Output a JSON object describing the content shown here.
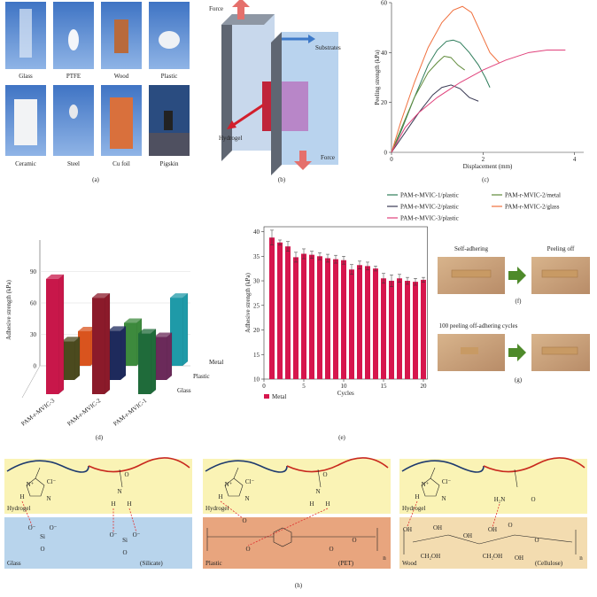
{
  "panel_labels": [
    "(a)",
    "(b)",
    "(c)",
    "(d)",
    "(e)",
    "(f)",
    "(g)",
    "(h)"
  ],
  "photos_a": [
    "Glass",
    "PTFE",
    "Wood",
    "Plastic",
    "Ceramic",
    "Steel",
    "Cu foil",
    "Pigskin"
  ],
  "diagram_b": [
    "Force",
    "Substrates",
    "Hydrogel",
    "Force"
  ],
  "chart_data": [
    {
      "type": "line",
      "xlabel": "Displacement (mm)",
      "ylabel": "Peeling strength (kPa)",
      "xlim": [
        0,
        4.2
      ],
      "xticks": [
        0,
        2,
        4
      ],
      "ylim": [
        0,
        60
      ],
      "yticks": [
        0,
        20,
        40,
        60
      ],
      "series": [
        {
          "name": "PAM-r-MVIC-1/plastic",
          "color": "#2f7d5b",
          "x": [
            0,
            0.2,
            0.5,
            0.8,
            1.0,
            1.2,
            1.35,
            1.5,
            1.7,
            1.9,
            2.05,
            2.15
          ],
          "values": [
            0,
            8,
            22,
            35,
            41,
            44.5,
            45,
            44,
            40,
            35,
            30,
            26
          ]
        },
        {
          "name": "PAM-r-MVIC-2/metal",
          "color": "#5f8a3a",
          "x": [
            0,
            0.2,
            0.5,
            0.8,
            1.0,
            1.15,
            1.3,
            1.45,
            1.6
          ],
          "values": [
            0,
            9,
            22,
            32,
            36,
            38.5,
            38,
            35,
            33
          ]
        },
        {
          "name": "PAM-r-MVIC-2/plastic",
          "color": "#3b3b55",
          "x": [
            0,
            0.3,
            0.6,
            0.9,
            1.1,
            1.3,
            1.5,
            1.7,
            1.9
          ],
          "values": [
            0,
            8,
            16,
            23,
            26,
            27,
            25.5,
            22,
            20.5
          ]
        },
        {
          "name": "PAM-r-MVIC-2/glass",
          "color": "#f0703e",
          "x": [
            0,
            0.2,
            0.5,
            0.8,
            1.1,
            1.35,
            1.55,
            1.75,
            1.95,
            2.15,
            2.35
          ],
          "values": [
            0,
            12,
            28,
            42,
            52,
            57,
            58.5,
            56,
            48,
            40,
            36
          ]
        },
        {
          "name": "PAM-r-MVIC-3/plastic",
          "color": "#e0417b",
          "x": [
            0,
            0.3,
            0.6,
            1.0,
            1.5,
            2.0,
            2.5,
            3.0,
            3.4,
            3.8
          ],
          "values": [
            0,
            10,
            16,
            22,
            28,
            33,
            37,
            40,
            41,
            41
          ]
        }
      ]
    },
    {
      "type": "bar3d",
      "ylabel": "Adhesive strength (kPa)",
      "categories": [
        "PAM-r-MVIC-3",
        "PAM-r-MVIC-2",
        "PAM-r-MVIC-1"
      ],
      "ylim": [
        0,
        120
      ],
      "yticks": [
        0,
        30,
        60,
        90
      ],
      "series": [
        {
          "name": "Glass",
          "colors": [
            "#c8174a",
            "#8b1a2a",
            "#1f6b3a"
          ],
          "values": [
            110,
            92,
            58
          ]
        },
        {
          "name": "Plastic",
          "colors": [
            "#4b4a1e",
            "#1e2a5c",
            "#6b2a5a"
          ],
          "values": [
            37,
            47,
            41
          ]
        },
        {
          "name": "Metal",
          "colors": [
            "#d9541e",
            "#3d8a3d",
            "#1f9aa8"
          ],
          "values": [
            33,
            41,
            65
          ]
        }
      ]
    },
    {
      "type": "bar",
      "xlabel": "Cycles",
      "ylabel": "Adhesive strength (kPa)",
      "xlim": [
        0,
        20.5
      ],
      "xticks": [
        0,
        5,
        10,
        15,
        20
      ],
      "ylim": [
        10,
        41
      ],
      "yticks": [
        10,
        15,
        20,
        25,
        30,
        35,
        40
      ],
      "x": [
        1,
        2,
        3,
        4,
        5,
        6,
        7,
        8,
        9,
        10,
        11,
        12,
        13,
        14,
        15,
        16,
        17,
        18,
        19,
        20
      ],
      "series": [
        {
          "name": "Metal",
          "color": "#d6164d",
          "values": [
            38.8,
            37.8,
            37,
            34.8,
            35.5,
            35.3,
            35,
            34.6,
            34.4,
            34.2,
            32.3,
            33.2,
            33,
            32.5,
            30.5,
            30,
            30.5,
            30,
            29.8,
            30.2
          ],
          "errors": [
            1.5,
            0.5,
            1,
            1,
            1,
            0.7,
            0.7,
            0.8,
            0.8,
            0.8,
            1,
            0.8,
            0.8,
            0.5,
            1,
            1.2,
            0.8,
            0.7,
            0.7,
            0.5
          ]
        }
      ]
    }
  ],
  "photos_fg": {
    "f": [
      "Self-adhering",
      "Peeling off"
    ],
    "g": [
      "100 peeling off-adhering cycles"
    ]
  },
  "schemes_h": [
    {
      "top": "Hydrogel",
      "substrate": "Glass",
      "material": "(Silicate)",
      "hydrogel_atoms": [
        "N⁺",
        "Cl⁻",
        "H",
        "N",
        "O",
        "N",
        "H",
        "H"
      ],
      "substrate_atoms": [
        "O⁻",
        "O⁻",
        "Si",
        "O",
        "O⁻",
        "O⁻",
        "Si",
        "O"
      ]
    },
    {
      "top": "Hydrogel",
      "substrate": "Plastic",
      "material": "(PET)",
      "hydrogel_atoms": [
        "N⁺",
        "Cl⁻",
        "H",
        "N",
        "O",
        "N",
        "H",
        "H"
      ],
      "substrate_atoms": [
        "O",
        "O",
        "O",
        "O",
        "n"
      ]
    },
    {
      "top": "Hydrogel",
      "substrate": "Wood",
      "material": "(Cellulose)",
      "hydrogel_atoms": [
        "N⁺",
        "Cl⁻",
        "H",
        "N",
        "H₂N",
        "O"
      ],
      "substrate_atoms": [
        "OH",
        "OH",
        "OH",
        "OH",
        "O",
        "CH₂OH",
        "CH₂OH",
        "OH",
        "O",
        "n"
      ]
    }
  ]
}
